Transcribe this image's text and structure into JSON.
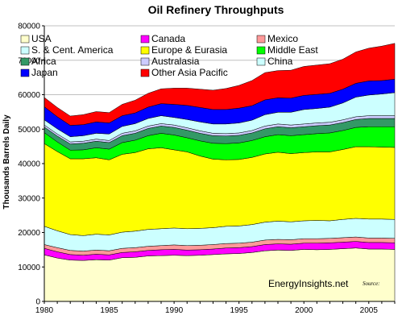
{
  "chart_data": {
    "type": "area",
    "stacked": true,
    "title": "Oil Refinery Throughputs",
    "ylabel": "Thousands Barrels Daily",
    "xlabel": "",
    "xlim": [
      1980,
      2007
    ],
    "ylim": [
      0,
      80000
    ],
    "x_ticks": [
      1980,
      1985,
      1990,
      1995,
      2000,
      2005
    ],
    "y_ticks": [
      0,
      10000,
      20000,
      30000,
      40000,
      50000,
      60000,
      70000,
      80000
    ],
    "grid": true,
    "legend_position": "top-left",
    "annotations": [
      "EnergyInsights.net",
      "Source:"
    ],
    "x": [
      1980,
      1981,
      1982,
      1983,
      1984,
      1985,
      1986,
      1987,
      1988,
      1989,
      1990,
      1991,
      1992,
      1993,
      1994,
      1995,
      1996,
      1997,
      1998,
      1999,
      2000,
      2001,
      2002,
      2003,
      2004,
      2005,
      2006,
      2007
    ],
    "series": [
      {
        "name": "USA",
        "color": "#FFFFCC",
        "values": [
          13500,
          12600,
          12000,
          11900,
          12100,
          12000,
          12700,
          12800,
          13200,
          13300,
          13400,
          13300,
          13400,
          13600,
          13800,
          13900,
          14200,
          14700,
          14900,
          14800,
          15100,
          15000,
          15100,
          15300,
          15500,
          15200,
          15200,
          15100
        ]
      },
      {
        "name": "Canada",
        "color": "#FF00FF",
        "values": [
          1900,
          1800,
          1600,
          1500,
          1600,
          1500,
          1500,
          1600,
          1600,
          1700,
          1700,
          1600,
          1600,
          1600,
          1700,
          1700,
          1700,
          1800,
          1800,
          1800,
          1800,
          1900,
          1900,
          1900,
          1900,
          1900,
          1900,
          1900
        ]
      },
      {
        "name": "Mexico",
        "color": "#FF9999",
        "values": [
          1100,
          1200,
          1200,
          1200,
          1200,
          1200,
          1200,
          1200,
          1200,
          1200,
          1300,
          1300,
          1300,
          1300,
          1300,
          1300,
          1300,
          1300,
          1300,
          1300,
          1300,
          1300,
          1300,
          1300,
          1300,
          1300,
          1300,
          1300
        ]
      },
      {
        "name": "S. & Cent. America",
        "color": "#CCFFFF",
        "values": [
          5300,
          4900,
          4600,
          4500,
          4600,
          4600,
          4700,
          4800,
          4900,
          4900,
          4900,
          4900,
          4900,
          4900,
          5000,
          5000,
          5100,
          5200,
          5300,
          5200,
          5200,
          5300,
          5100,
          5300,
          5400,
          5500,
          5500,
          5500
        ]
      },
      {
        "name": "Europe & Eurasia",
        "color": "#FFFF00",
        "values": [
          24000,
          23000,
          22000,
          22300,
          22200,
          21800,
          22600,
          22800,
          23400,
          23500,
          22700,
          22300,
          21000,
          19900,
          19300,
          19300,
          19500,
          19800,
          20000,
          19800,
          19800,
          19900,
          20000,
          20300,
          20800,
          21000,
          20900,
          20900
        ]
      },
      {
        "name": "Middle East",
        "color": "#00FF00",
        "values": [
          3200,
          2800,
          2500,
          2600,
          2900,
          3100,
          3400,
          3600,
          3800,
          4200,
          4300,
          4100,
          4400,
          4600,
          4700,
          4800,
          4900,
          5000,
          5100,
          5200,
          5200,
          5300,
          5500,
          5500,
          5600,
          5800,
          5900,
          6000
        ]
      },
      {
        "name": "Africa",
        "color": "#339966",
        "values": [
          1600,
          1700,
          1800,
          1900,
          1900,
          1900,
          2000,
          2000,
          2100,
          2100,
          2200,
          2200,
          2200,
          2200,
          2200,
          2200,
          2200,
          2300,
          2300,
          2300,
          2300,
          2300,
          2300,
          2300,
          2300,
          2400,
          2400,
          2400
        ]
      },
      {
        "name": "Australasia",
        "color": "#CCCCFF",
        "values": [
          600,
          600,
          600,
          600,
          600,
          600,
          700,
          700,
          700,
          700,
          700,
          700,
          700,
          700,
          700,
          700,
          700,
          800,
          800,
          800,
          800,
          800,
          800,
          800,
          800,
          800,
          800,
          800
        ]
      },
      {
        "name": "China",
        "color": "#CCFFFF",
        "values": [
          1500,
          1500,
          1500,
          1600,
          1700,
          1900,
          2000,
          2100,
          2200,
          2300,
          2200,
          2400,
          2600,
          2700,
          2800,
          2900,
          3000,
          3300,
          3400,
          3700,
          4200,
          4200,
          4400,
          4900,
          5700,
          6000,
          6300,
          6700
        ]
      },
      {
        "name": "Japan",
        "color": "#0000FF",
        "values": [
          3800,
          3500,
          3300,
          3200,
          3300,
          3200,
          3100,
          3100,
          3300,
          3500,
          3800,
          4100,
          4200,
          4200,
          4200,
          4300,
          4200,
          4300,
          4200,
          4100,
          4100,
          4100,
          4000,
          4000,
          4000,
          4100,
          3900,
          3900
        ]
      },
      {
        "name": "Other Asia Pacific",
        "color": "#FF0000",
        "values": [
          2700,
          2700,
          2700,
          2900,
          3000,
          3000,
          3300,
          3700,
          4000,
          4300,
          4700,
          5000,
          5300,
          5600,
          6100,
          6600,
          7300,
          7900,
          7900,
          8100,
          8400,
          8500,
          8600,
          8700,
          9100,
          9500,
          10000,
          10400
        ]
      }
    ]
  }
}
